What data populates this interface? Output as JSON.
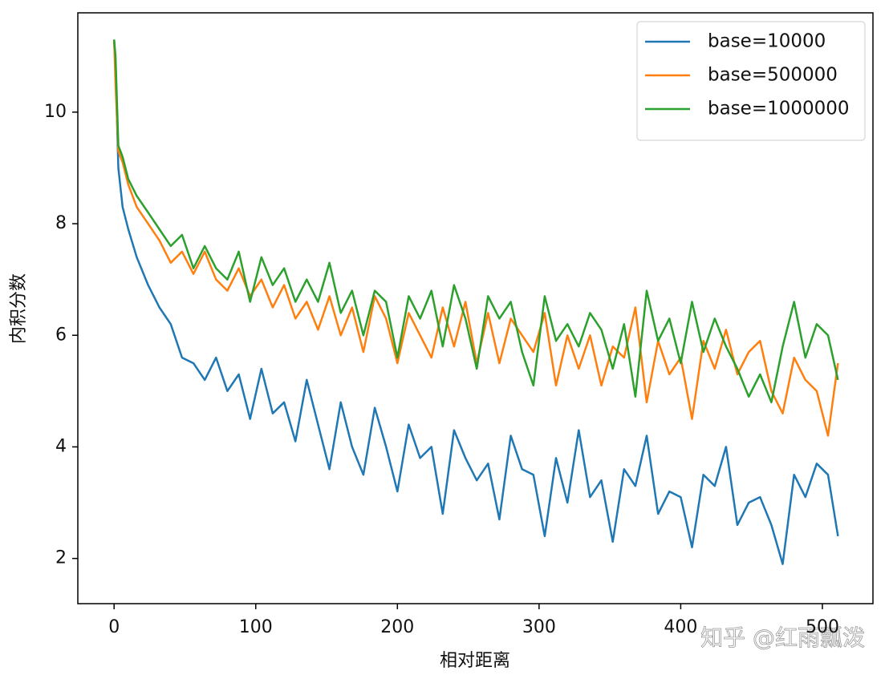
{
  "chart_data": {
    "type": "line",
    "x_label": "相对距离",
    "y_label": "内积分数",
    "watermark": "知乎 @红雨瓢泼",
    "legend": "upper right",
    "grid": false,
    "xlim": [
      -25.6,
      535.7
    ],
    "ylim": [
      1.19,
      11.78
    ],
    "xticks": [
      0,
      100,
      200,
      300,
      400,
      500
    ],
    "yticks": [
      2,
      4,
      6,
      8,
      10
    ],
    "x": [
      0,
      1,
      3,
      6,
      10,
      16,
      24,
      32,
      40,
      48,
      56,
      64,
      72,
      80,
      88,
      96,
      104,
      112,
      120,
      128,
      136,
      144,
      152,
      160,
      168,
      176,
      184,
      192,
      200,
      208,
      216,
      224,
      232,
      240,
      248,
      256,
      264,
      272,
      280,
      288,
      296,
      304,
      312,
      320,
      328,
      336,
      344,
      352,
      360,
      368,
      376,
      384,
      392,
      400,
      408,
      416,
      424,
      432,
      440,
      448,
      456,
      464,
      472,
      480,
      488,
      496,
      504,
      511
    ],
    "series": [
      {
        "name": "base=10000",
        "color": "#1f77b4",
        "values": [
          11.3,
          10.8,
          9.0,
          8.3,
          7.9,
          7.4,
          6.9,
          6.5,
          6.2,
          5.6,
          5.5,
          5.2,
          5.6,
          5.0,
          5.3,
          4.5,
          5.4,
          4.6,
          4.8,
          4.1,
          5.2,
          4.4,
          3.6,
          4.8,
          4.0,
          3.5,
          4.7,
          4.0,
          3.2,
          4.4,
          3.8,
          4.0,
          2.8,
          4.3,
          3.8,
          3.4,
          3.7,
          2.7,
          4.2,
          3.6,
          3.5,
          2.4,
          3.8,
          3.0,
          4.3,
          3.1,
          3.4,
          2.3,
          3.6,
          3.3,
          4.2,
          2.8,
          3.2,
          3.1,
          2.2,
          3.5,
          3.3,
          4.0,
          2.6,
          3.0,
          3.1,
          2.6,
          1.9,
          3.5,
          3.1,
          3.7,
          3.5,
          2.4
        ]
      },
      {
        "name": "base=500000",
        "color": "#ff7f0e",
        "values": [
          11.3,
          10.5,
          9.3,
          9.1,
          8.7,
          8.3,
          8.0,
          7.7,
          7.3,
          7.5,
          7.1,
          7.5,
          7.0,
          6.8,
          7.2,
          6.7,
          7.0,
          6.5,
          6.9,
          6.3,
          6.6,
          6.1,
          6.7,
          6.0,
          6.5,
          5.7,
          6.7,
          6.3,
          5.5,
          6.4,
          6.0,
          5.6,
          6.5,
          5.8,
          6.6,
          5.5,
          6.4,
          5.5,
          6.3,
          6.0,
          5.7,
          6.4,
          5.1,
          6.0,
          5.4,
          6.0,
          5.1,
          5.8,
          5.6,
          6.5,
          4.8,
          5.9,
          5.3,
          5.6,
          4.5,
          5.9,
          5.4,
          6.1,
          5.3,
          5.7,
          5.9,
          5.0,
          4.6,
          5.6,
          5.2,
          5.0,
          4.2,
          5.5
        ]
      },
      {
        "name": "base=1000000",
        "color": "#2ca02c",
        "values": [
          11.3,
          11.0,
          9.4,
          9.2,
          8.8,
          8.5,
          8.2,
          7.9,
          7.6,
          7.8,
          7.2,
          7.6,
          7.2,
          7.0,
          7.5,
          6.6,
          7.4,
          6.9,
          7.2,
          6.6,
          7.0,
          6.6,
          7.3,
          6.4,
          6.8,
          6.0,
          6.8,
          6.6,
          5.6,
          6.7,
          6.3,
          6.8,
          5.8,
          6.9,
          6.3,
          5.4,
          6.7,
          6.3,
          6.6,
          5.7,
          5.1,
          6.7,
          5.9,
          6.2,
          5.8,
          6.4,
          6.1,
          5.4,
          6.2,
          4.9,
          6.8,
          5.9,
          6.3,
          5.5,
          6.6,
          5.7,
          6.3,
          5.8,
          5.4,
          4.9,
          5.3,
          4.8,
          5.8,
          6.6,
          5.6,
          6.2,
          6.0,
          5.2
        ]
      }
    ]
  }
}
